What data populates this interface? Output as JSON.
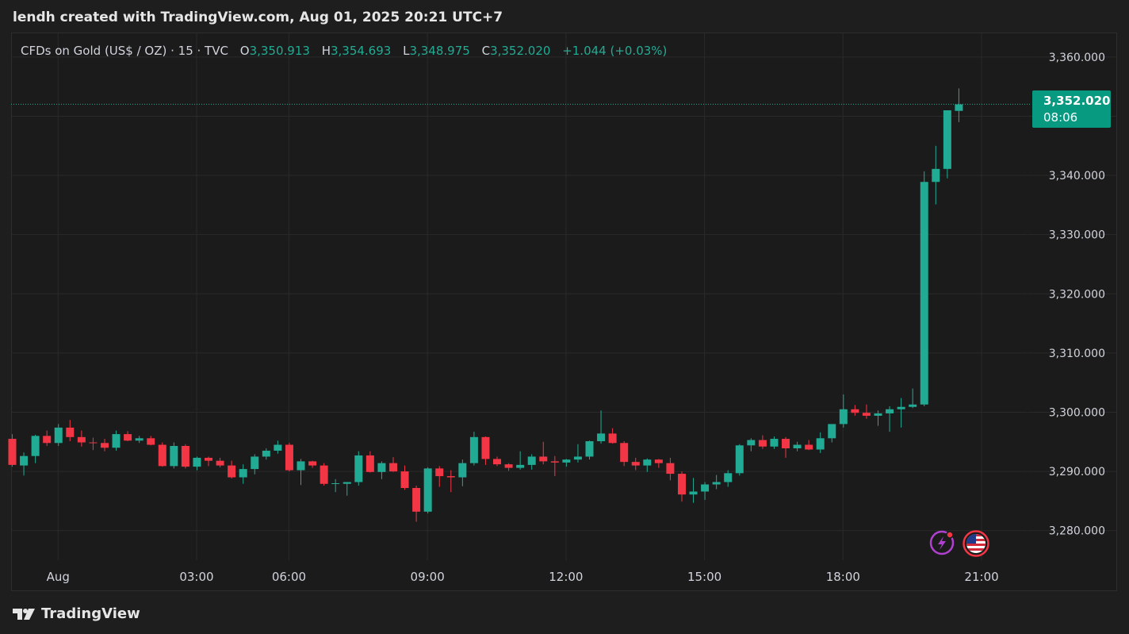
{
  "header": {
    "caption": "lendh created with TradingView.com, Aug 01, 2025 20:21 UTC+7"
  },
  "legend": {
    "symbol": "CFDs on Gold (US$ / OZ) · 15 · TVC",
    "open_label": "O",
    "open": "3,350.913",
    "high_label": "H",
    "high": "3,354.693",
    "low_label": "L",
    "low": "3,348.975",
    "close_label": "C",
    "close": "3,352.020",
    "change": "+1.044 (+0.03%)"
  },
  "price_tag": {
    "price": "3,352.020",
    "countdown": "08:06"
  },
  "footer": {
    "brand": "TradingView"
  },
  "colors": {
    "up": "#22ab94",
    "down": "#f23645",
    "background": "#1b1b1b",
    "grid": "#2a2a2a",
    "text": "#d1d4dc"
  },
  "icons": [
    "lightning-event-icon",
    "us-flag-icon",
    "tradingview-logo-icon"
  ],
  "chart_data": {
    "type": "candlestick",
    "interval": "15",
    "ylim": [
      3275,
      3364
    ],
    "y_ticks": [
      "3,280.000",
      "3,290.000",
      "3,300.000",
      "3,310.000",
      "3,320.000",
      "3,330.000",
      "3,340.000",
      "3,350.000",
      "3,360.000"
    ],
    "y_tick_values": [
      3280,
      3290,
      3300,
      3310,
      3320,
      3330,
      3340,
      3350,
      3360
    ],
    "x_ticks": [
      "Aug",
      "03:00",
      "06:00",
      "09:00",
      "12:00",
      "15:00",
      "18:00",
      "21:00"
    ],
    "x_tick_index": [
      4,
      16,
      24,
      36,
      48,
      60,
      72,
      84
    ],
    "last_price": 3352.02,
    "candles": [
      [
        3295.5,
        3296.3,
        3290.8,
        3291.1
      ],
      [
        3291.0,
        3293.2,
        3289.3,
        3292.6
      ],
      [
        3292.6,
        3296.2,
        3291.4,
        3296.0
      ],
      [
        3296.0,
        3296.9,
        3294.3,
        3294.8
      ],
      [
        3294.8,
        3298.0,
        3294.3,
        3297.4
      ],
      [
        3297.4,
        3298.7,
        3295.1,
        3295.8
      ],
      [
        3295.8,
        3296.9,
        3294.2,
        3294.9
      ],
      [
        3294.9,
        3295.7,
        3293.6,
        3294.8
      ],
      [
        3294.8,
        3295.5,
        3293.4,
        3294.0
      ],
      [
        3294.0,
        3296.9,
        3293.5,
        3296.3
      ],
      [
        3296.3,
        3296.8,
        3295.1,
        3295.2
      ],
      [
        3295.2,
        3296.0,
        3294.8,
        3295.6
      ],
      [
        3295.6,
        3296.0,
        3294.4,
        3294.5
      ],
      [
        3294.5,
        3294.9,
        3290.8,
        3290.9
      ],
      [
        3290.9,
        3294.9,
        3290.5,
        3294.3
      ],
      [
        3294.3,
        3294.6,
        3290.5,
        3290.8
      ],
      [
        3290.8,
        3292.5,
        3290.2,
        3292.3
      ],
      [
        3292.3,
        3292.5,
        3290.9,
        3291.8
      ],
      [
        3291.8,
        3292.3,
        3290.7,
        3291.0
      ],
      [
        3291.0,
        3291.8,
        3288.8,
        3289.0
      ],
      [
        3289.0,
        3291.2,
        3287.9,
        3290.4
      ],
      [
        3290.4,
        3292.9,
        3289.5,
        3292.5
      ],
      [
        3292.5,
        3293.9,
        3292.0,
        3293.5
      ],
      [
        3293.5,
        3295.2,
        3293.0,
        3294.5
      ],
      [
        3294.5,
        3294.8,
        3290.0,
        3290.2
      ],
      [
        3290.2,
        3292.1,
        3287.7,
        3291.7
      ],
      [
        3291.7,
        3291.8,
        3290.6,
        3291.0
      ],
      [
        3291.0,
        3291.4,
        3287.6,
        3287.9
      ],
      [
        3287.9,
        3288.7,
        3286.5,
        3288.0
      ],
      [
        3287.9,
        3288.2,
        3285.9,
        3288.2
      ],
      [
        3288.2,
        3293.4,
        3287.6,
        3292.7
      ],
      [
        3292.7,
        3293.4,
        3289.8,
        3289.9
      ],
      [
        3289.9,
        3291.7,
        3288.7,
        3291.4
      ],
      [
        3291.4,
        3292.4,
        3289.9,
        3290.0
      ],
      [
        3290.0,
        3291.0,
        3286.9,
        3287.2
      ],
      [
        3287.2,
        3287.6,
        3281.5,
        3283.2
      ],
      [
        3283.2,
        3290.7,
        3282.9,
        3290.5
      ],
      [
        3290.5,
        3290.9,
        3287.4,
        3289.2
      ],
      [
        3289.2,
        3290.2,
        3286.5,
        3289.0
      ],
      [
        3289.0,
        3292.0,
        3287.5,
        3291.4
      ],
      [
        3291.4,
        3296.7,
        3291.0,
        3295.8
      ],
      [
        3295.8,
        3295.9,
        3291.1,
        3292.1
      ],
      [
        3292.1,
        3292.5,
        3290.9,
        3291.2
      ],
      [
        3291.2,
        3291.4,
        3290.1,
        3290.6
      ],
      [
        3290.6,
        3293.4,
        3290.3,
        3291.1
      ],
      [
        3291.1,
        3292.9,
        3290.3,
        3292.5
      ],
      [
        3292.5,
        3295.0,
        3291.2,
        3291.7
      ],
      [
        3291.7,
        3292.6,
        3289.2,
        3291.5
      ],
      [
        3291.5,
        3292.1,
        3290.8,
        3292.0
      ],
      [
        3292.0,
        3294.6,
        3291.5,
        3292.5
      ],
      [
        3292.5,
        3295.2,
        3292.0,
        3295.1
      ],
      [
        3295.1,
        3300.3,
        3294.7,
        3296.4
      ],
      [
        3296.4,
        3297.3,
        3294.7,
        3294.8
      ],
      [
        3294.8,
        3295.1,
        3290.9,
        3291.6
      ],
      [
        3291.6,
        3292.3,
        3290.2,
        3291.0
      ],
      [
        3291.0,
        3292.2,
        3289.9,
        3292.0
      ],
      [
        3292.0,
        3292.1,
        3290.6,
        3291.4
      ],
      [
        3291.4,
        3292.3,
        3288.5,
        3289.6
      ],
      [
        3289.6,
        3290.0,
        3284.9,
        3286.1
      ],
      [
        3286.1,
        3288.9,
        3284.7,
        3286.6
      ],
      [
        3286.6,
        3288.2,
        3285.2,
        3287.8
      ],
      [
        3287.8,
        3289.4,
        3287.0,
        3288.2
      ],
      [
        3288.2,
        3290.2,
        3287.4,
        3289.7
      ],
      [
        3289.7,
        3294.6,
        3289.3,
        3294.4
      ],
      [
        3294.4,
        3295.6,
        3293.4,
        3295.3
      ],
      [
        3295.3,
        3296.1,
        3293.8,
        3294.2
      ],
      [
        3294.2,
        3295.9,
        3293.8,
        3295.5
      ],
      [
        3295.5,
        3295.8,
        3292.3,
        3293.9
      ],
      [
        3293.9,
        3295.0,
        3293.4,
        3294.5
      ],
      [
        3294.5,
        3295.3,
        3293.6,
        3293.7
      ],
      [
        3293.7,
        3296.6,
        3293.1,
        3295.6
      ],
      [
        3295.6,
        3297.7,
        3294.9,
        3298.0
      ],
      [
        3298.0,
        3303.0,
        3297.4,
        3300.5
      ],
      [
        3300.5,
        3301.2,
        3299.4,
        3299.9
      ],
      [
        3299.9,
        3301.3,
        3298.9,
        3299.4
      ],
      [
        3299.4,
        3300.3,
        3297.7,
        3299.8
      ],
      [
        3299.8,
        3301.0,
        3296.7,
        3300.5
      ],
      [
        3300.5,
        3302.4,
        3297.4,
        3300.9
      ],
      [
        3300.9,
        3304.0,
        3300.7,
        3301.3
      ],
      [
        3301.3,
        3340.7,
        3301.0,
        3338.9
      ],
      [
        3338.9,
        3345.0,
        3335.1,
        3341.1
      ],
      [
        3341.1,
        3350.8,
        3339.5,
        3351.0
      ],
      [
        3350.9,
        3354.7,
        3349.0,
        3352.0
      ]
    ]
  }
}
